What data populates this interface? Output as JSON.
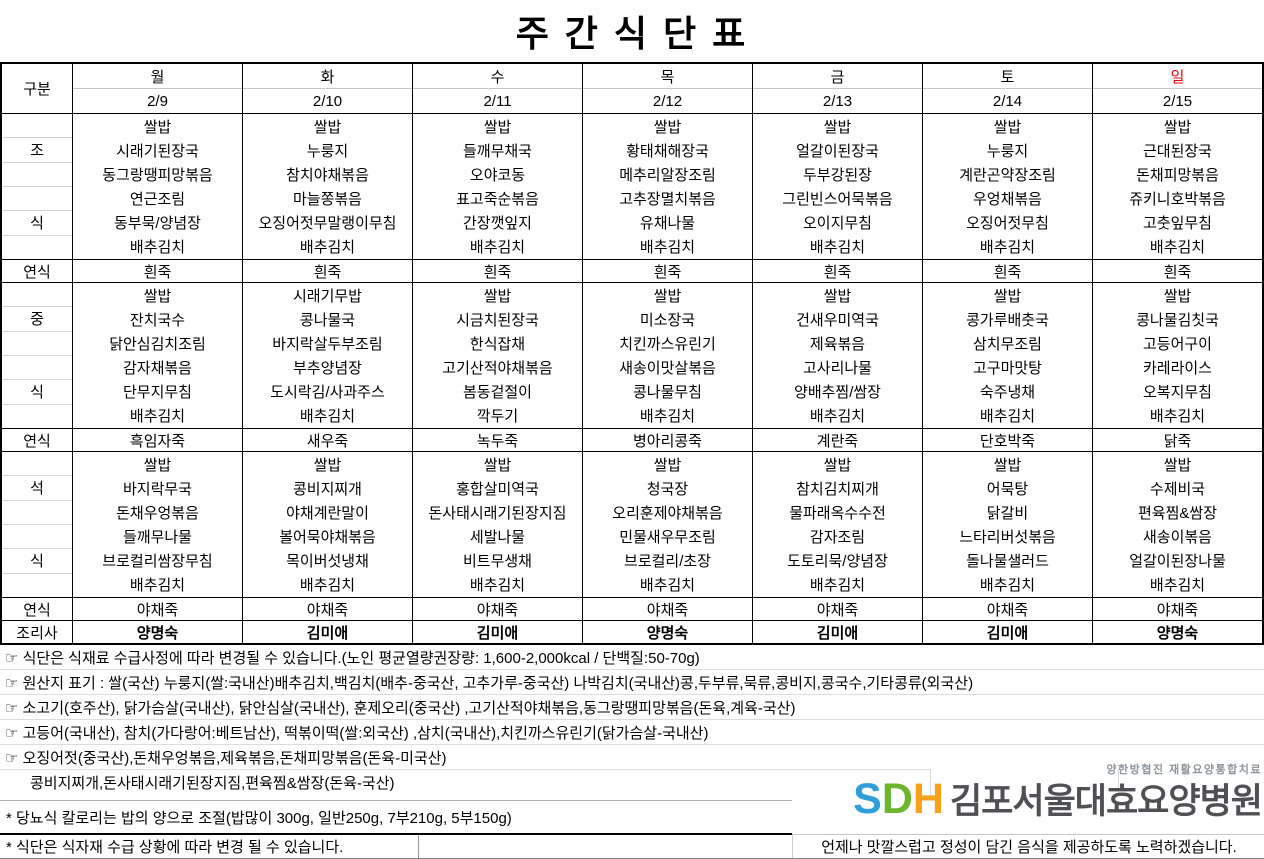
{
  "title": "주 간 식 단 표",
  "colors": {
    "sunday_red": "#e8000d",
    "logo_s": "#2e9fd8",
    "logo_d": "#6cb52d",
    "logo_h": "#f8a11b",
    "logo_name_gray": "#4e5054"
  },
  "header": {
    "corner": "구분",
    "days": [
      {
        "name": "월",
        "date": "2/9",
        "highlight": false
      },
      {
        "name": "화",
        "date": "2/10",
        "highlight": false
      },
      {
        "name": "수",
        "date": "2/11",
        "highlight": false
      },
      {
        "name": "목",
        "date": "2/12",
        "highlight": false
      },
      {
        "name": "금",
        "date": "2/13",
        "highlight": false
      },
      {
        "name": "토",
        "date": "2/14",
        "highlight": false
      },
      {
        "name": "일",
        "date": "2/15",
        "highlight": true
      }
    ]
  },
  "sections": [
    {
      "id": "breakfast",
      "type": "meal",
      "label_top": "조",
      "label_bottom": "식",
      "columns": [
        [
          "쌀밥",
          "시래기된장국",
          "동그랑땡피망볶음",
          "연근조림",
          "동부묵/양념장",
          "배추김치"
        ],
        [
          "쌀밥",
          "누룽지",
          "참치야채볶음",
          "마늘쫑볶음",
          "오징어젓무말랭이무침",
          "배추김치"
        ],
        [
          "쌀밥",
          "들깨무채국",
          "오야코동",
          "표고죽순볶음",
          "간장깻잎지",
          "배추김치"
        ],
        [
          "쌀밥",
          "황태채해장국",
          "메추리알장조림",
          "고추장멸치볶음",
          "유채나물",
          "배추김치"
        ],
        [
          "쌀밥",
          "얼갈이된장국",
          "두부강된장",
          "그린빈스어묵볶음",
          "오이지무침",
          "배추김치"
        ],
        [
          "쌀밥",
          "누룽지",
          "계란곤약장조림",
          "우엉채볶음",
          "오징어젓무침",
          "배추김치"
        ],
        [
          "쌀밥",
          "근대된장국",
          "돈채피망볶음",
          "쥬키니호박볶음",
          "고춧잎무침",
          "배추김치"
        ]
      ]
    },
    {
      "id": "breakfast-soft",
      "type": "soft",
      "label": "연식",
      "cells": [
        "흰죽",
        "흰죽",
        "흰죽",
        "흰죽",
        "흰죽",
        "흰죽",
        "흰죽"
      ]
    },
    {
      "id": "lunch",
      "type": "meal",
      "label_top": "중",
      "label_bottom": "식",
      "columns": [
        [
          "쌀밥",
          "잔치국수",
          "닭안심김치조림",
          "감자채볶음",
          "단무지무침",
          "배추김치"
        ],
        [
          "시래기무밥",
          "콩나물국",
          "바지락살두부조림",
          "부추양념장",
          "도시락김/사과주스",
          "배추김치"
        ],
        [
          "쌀밥",
          "시금치된장국",
          "한식잡채",
          "고기산적야채볶음",
          "봄동겉절이",
          "깍두기"
        ],
        [
          "쌀밥",
          "미소장국",
          "치킨까스유린기",
          "새송이맛살볶음",
          "콩나물무침",
          "배추김치"
        ],
        [
          "쌀밥",
          "건새우미역국",
          "제육볶음",
          "고사리나물",
          "양배추찜/쌈장",
          "배추김치"
        ],
        [
          "쌀밥",
          "콩가루배춧국",
          "삼치무조림",
          "고구마맛탕",
          "숙주냉채",
          "배추김치"
        ],
        [
          "쌀밥",
          "콩나물김칫국",
          "고등어구이",
          "카레라이스",
          "오복지무침",
          "배추김치"
        ]
      ]
    },
    {
      "id": "lunch-soft",
      "type": "soft",
      "label": "연식",
      "cells": [
        "흑임자죽",
        "새우죽",
        "녹두죽",
        "병아리콩죽",
        "계란죽",
        "단호박죽",
        "닭죽"
      ]
    },
    {
      "id": "dinner",
      "type": "meal",
      "label_top": "석",
      "label_bottom": "식",
      "columns": [
        [
          "쌀밥",
          "바지락무국",
          "돈채우엉볶음",
          "들깨무나물",
          "브로컬리쌈장무침",
          "배추김치"
        ],
        [
          "쌀밥",
          "콩비지찌개",
          "야채계란말이",
          "볼어묵야채볶음",
          "목이버섯냉채",
          "배추김치"
        ],
        [
          "쌀밥",
          "홍합살미역국",
          "돈사태시래기된장지짐",
          "세발나물",
          "비트무생채",
          "배추김치"
        ],
        [
          "쌀밥",
          "청국장",
          "오리훈제야채볶음",
          "민물새우무조림",
          "브로컬리/초장",
          "배추김치"
        ],
        [
          "쌀밥",
          "참치김치찌개",
          "물파래옥수수전",
          "감자조림",
          "도토리묵/양념장",
          "배추김치"
        ],
        [
          "쌀밥",
          "어묵탕",
          "닭갈비",
          "느타리버섯볶음",
          "돌나물샐러드",
          "배추김치"
        ],
        [
          "쌀밥",
          "수제비국",
          "편육찜&쌈장",
          "새송이볶음",
          "얼갈이된장나물",
          "배추김치"
        ]
      ]
    },
    {
      "id": "dinner-soft",
      "type": "soft",
      "label": "연식",
      "cells": [
        "야채죽",
        "야채죽",
        "야채죽",
        "야채죽",
        "야채죽",
        "야채죽",
        "야채죽"
      ]
    },
    {
      "id": "cook",
      "type": "cook",
      "label": "조리사",
      "cells": [
        "양명숙",
        "김미애",
        "김미애",
        "양명숙",
        "김미애",
        "김미애",
        "양명숙"
      ]
    }
  ],
  "notes": [
    "☞ 식단은 식재료 수급사정에 따라 변경될 수 있습니다.(노인 평균열량권장량: 1,600-2,000kcal / 단백질:50-70g)",
    "☞ 원산지 표기 : 쌀(국산) 누룽지(쌀:국내산)배추김치,백김치(배추-중국산, 고추가루-중국산) 나박김치(국내산)콩,두부류,묵류,콩비지,콩국수,기타콩류(외국산)",
    "☞ 소고기(호주산), 닭가슴살(국내산), 닭안심살(국내산), 훈제오리(중국산) ,고기산적야채볶음,동그랑땡피망볶음(돈육,계육-국산)",
    "☞ 고등어(국내산), 참치(가다랑어:베트남산), 떡볶이떡(쌀:외국산) ,삼치(국내산),치킨까스유린기(닭가슴살-국내산)",
    "☞ 오징어젓(중국산),돈채우엉볶음,제육볶음,돈채피망볶음(돈육-미국산)",
    "콩비지찌개,돈사태시래기된장지짐,편육찜&쌈장(돈육-국산)"
  ],
  "footer": {
    "diabetic_note": "* 당뇨식 칼로리는 밥의 양으로 조절(밥많이 300g, 일반250g, 7부210g, 5부150g)",
    "supply_note": "* 식단은 식자재 수급 상황에 따라 변경 될 수 있습니다.",
    "logo": {
      "tagline": "양한방협진 재활요양통합치료",
      "acronym": [
        {
          "ch": "S",
          "color": "#2e9fd8"
        },
        {
          "ch": "D",
          "color": "#6cb52d"
        },
        {
          "ch": "H",
          "color": "#f8a11b"
        }
      ],
      "name": "김포서울대효요양병원",
      "slogan": "언제나 맛깔스럽고 정성이 담긴 음식을 제공하도록 노력하겠습니다."
    }
  }
}
